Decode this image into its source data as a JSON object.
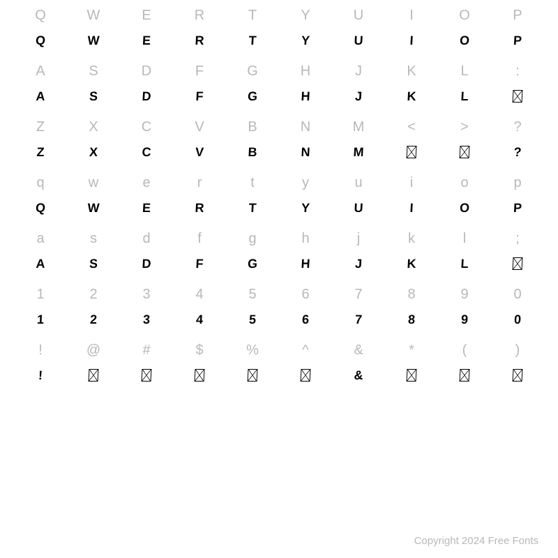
{
  "rows": [
    {
      "reference": [
        "Q",
        "W",
        "E",
        "R",
        "T",
        "Y",
        "U",
        "I",
        "O",
        "P"
      ],
      "glyphs": [
        "Q",
        "W",
        "E",
        "R",
        "T",
        "Y",
        "U",
        "I",
        "O",
        "P"
      ],
      "missing": [
        false,
        false,
        false,
        false,
        false,
        false,
        false,
        false,
        false,
        false
      ]
    },
    {
      "reference": [
        "A",
        "S",
        "D",
        "F",
        "G",
        "H",
        "J",
        "K",
        "L",
        ":"
      ],
      "glyphs": [
        "A",
        "S",
        "D",
        "F",
        "G",
        "H",
        "J",
        "K",
        "L",
        ""
      ],
      "missing": [
        false,
        false,
        false,
        false,
        false,
        false,
        false,
        false,
        false,
        true
      ]
    },
    {
      "reference": [
        "Z",
        "X",
        "C",
        "V",
        "B",
        "N",
        "M",
        "<",
        ">",
        "?"
      ],
      "glyphs": [
        "Z",
        "X",
        "C",
        "V",
        "B",
        "N",
        "M",
        "",
        "",
        "?"
      ],
      "missing": [
        false,
        false,
        false,
        false,
        false,
        false,
        false,
        true,
        true,
        false
      ]
    },
    {
      "reference": [
        "q",
        "w",
        "e",
        "r",
        "t",
        "y",
        "u",
        "i",
        "o",
        "p"
      ],
      "glyphs": [
        "Q",
        "W",
        "E",
        "R",
        "T",
        "Y",
        "U",
        "I",
        "O",
        "P"
      ],
      "missing": [
        false,
        false,
        false,
        false,
        false,
        false,
        false,
        false,
        false,
        false
      ]
    },
    {
      "reference": [
        "a",
        "s",
        "d",
        "f",
        "g",
        "h",
        "j",
        "k",
        "l",
        ";"
      ],
      "glyphs": [
        "A",
        "S",
        "D",
        "F",
        "G",
        "H",
        "J",
        "K",
        "L",
        ""
      ],
      "missing": [
        false,
        false,
        false,
        false,
        false,
        false,
        false,
        false,
        false,
        true
      ]
    },
    {
      "reference": [
        "1",
        "2",
        "3",
        "4",
        "5",
        "6",
        "7",
        "8",
        "9",
        "0"
      ],
      "glyphs": [
        "1",
        "2",
        "3",
        "4",
        "5",
        "6",
        "7",
        "8",
        "9",
        "0"
      ],
      "missing": [
        false,
        false,
        false,
        false,
        false,
        false,
        false,
        false,
        false,
        false
      ]
    },
    {
      "reference": [
        "!",
        "@",
        "#",
        "$",
        "%",
        "^",
        "&",
        "*",
        "(",
        ")"
      ],
      "glyphs": [
        "!",
        "",
        "",
        "",
        "",
        "",
        "&",
        "",
        "",
        ""
      ],
      "missing": [
        false,
        true,
        true,
        true,
        true,
        true,
        false,
        true,
        true,
        true
      ]
    }
  ],
  "copyright": "Copyright 2024 Free Fonts",
  "colors": {
    "reference": "#b8b8b8",
    "glyph": "#000000",
    "background": "#ffffff"
  },
  "typography": {
    "reference_fontsize": 20,
    "glyph_fontsize": 18
  }
}
